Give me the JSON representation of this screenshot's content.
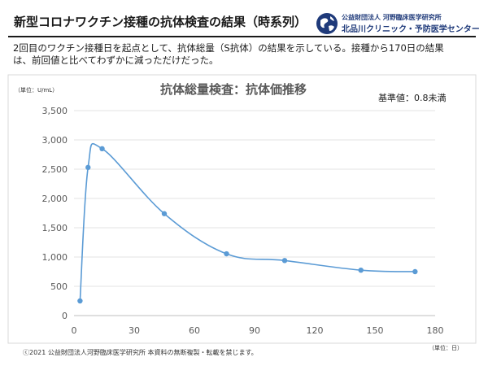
{
  "header": {
    "title": "新型コロナワクチン接種の抗体検査の結果（時系列）",
    "org_small": "公益財団法人 河野臨床医学研究所",
    "org_main": "北品川クリニック・予防医学センター"
  },
  "description": {
    "line1": "2回目のワクチン接種日を起点として、抗体総量（S抗体）の結果を示している。接種から170日の結果",
    "line2": "は、前回値と比べてわずかに減っただけだった。"
  },
  "footer": {
    "copyright": "ⓒ2021 公益財団法人河野臨床医学研究所 本資料の無断複製・転載を禁じます。"
  },
  "chart_data": {
    "type": "line",
    "title": "抗体総量検査：抗体価推移",
    "reference": "基準値：0.8未満",
    "ylabel": "（単位：U/mL）",
    "xlabel": "（単位：日）",
    "xlim": [
      0,
      180
    ],
    "ylim": [
      0,
      3500
    ],
    "xticks": [
      0,
      30,
      60,
      90,
      120,
      150,
      180
    ],
    "yticks": [
      0,
      500,
      1000,
      1500,
      2000,
      2500,
      3000,
      3500
    ],
    "ytick_labels": [
      "0",
      "500",
      "1,000",
      "1,500",
      "2,000",
      "2,500",
      "3,000",
      "3,500"
    ],
    "grid": true,
    "smooth": true,
    "series": [
      {
        "x": [
          3,
          7,
          14,
          45,
          76,
          105,
          143,
          170
        ],
        "values": [
          250,
          2530,
          2850,
          1740,
          1055,
          940,
          775,
          750
        ],
        "color": "#5b9bd5"
      }
    ]
  }
}
